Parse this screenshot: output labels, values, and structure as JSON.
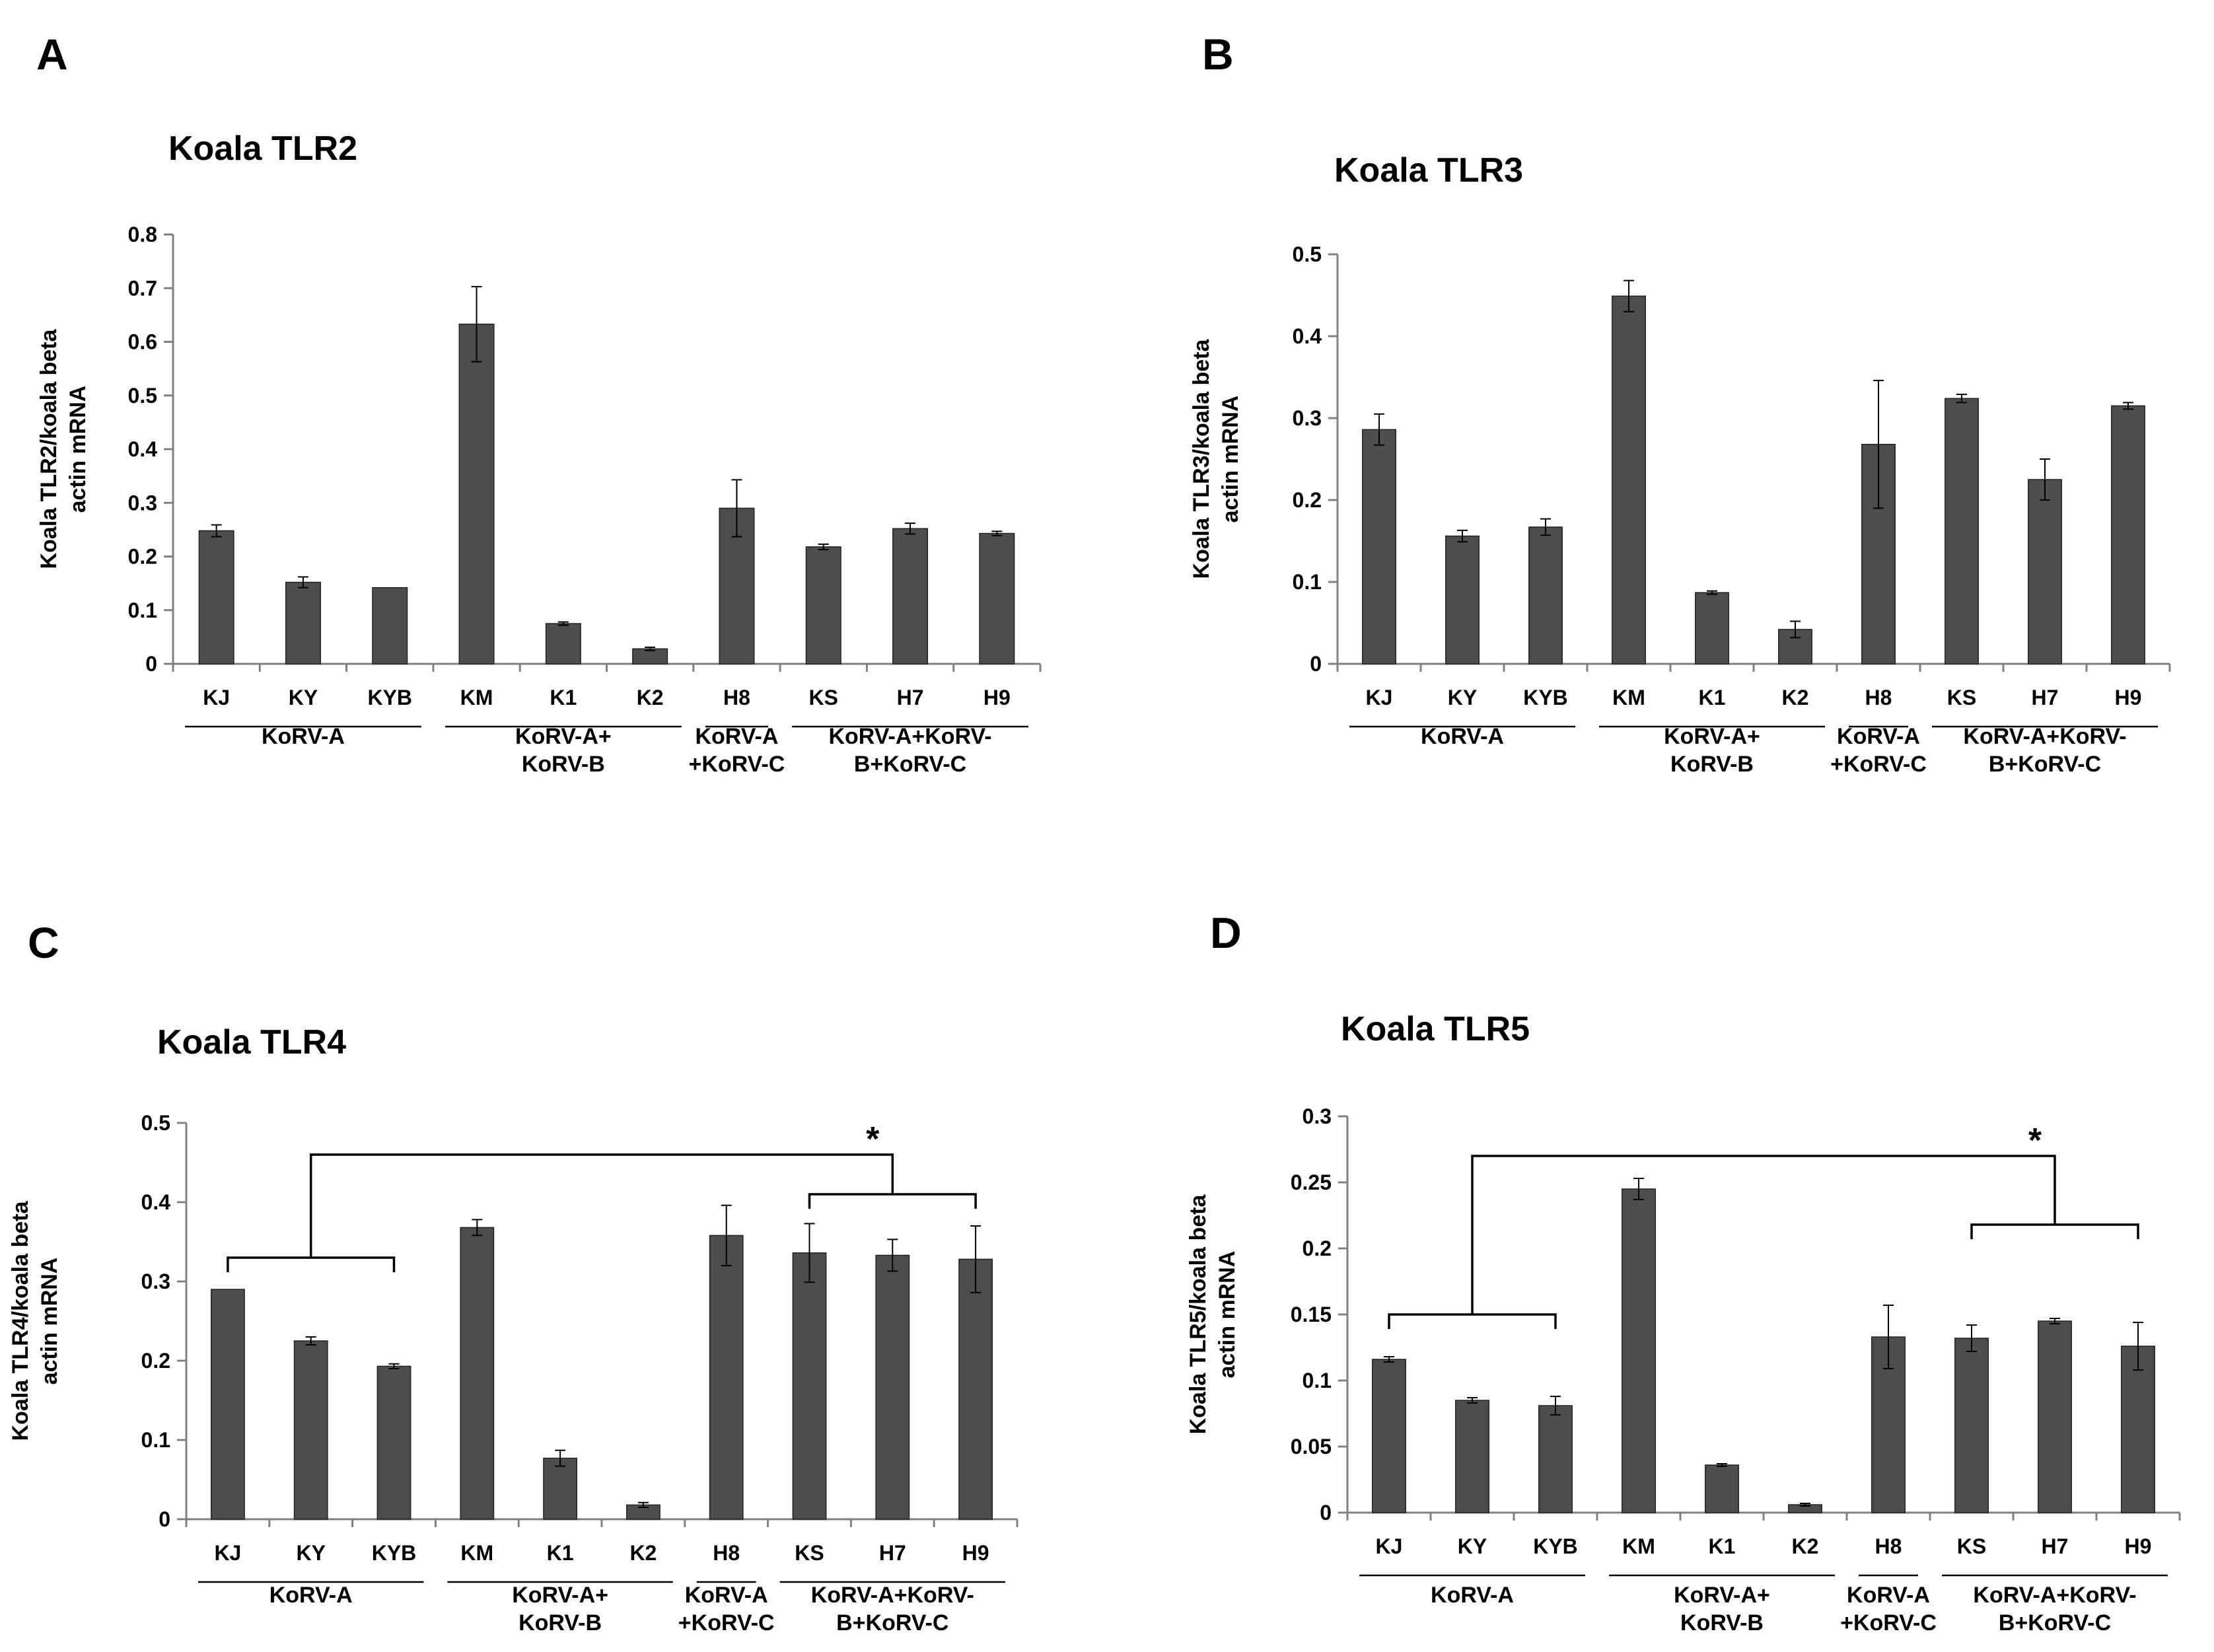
{
  "chart_data": [
    {
      "panel": "A",
      "type": "bar",
      "title": "Koala TLR2",
      "ylabel": [
        "Koala TLR2/koala beta",
        "actin mRNA"
      ],
      "ylim": [
        0,
        0.8
      ],
      "yticks": [
        "0",
        "0.1",
        "0.2",
        "0.3",
        "0.4",
        "0.5",
        "0.6",
        "0.7",
        "0.8"
      ],
      "categories": [
        "KJ",
        "KY",
        "KYB",
        "KM",
        "K1",
        "K2",
        "H8",
        "KS",
        "H7",
        "H9"
      ],
      "values": [
        0.248,
        0.152,
        0.142,
        0.633,
        0.075,
        0.028,
        0.29,
        0.218,
        0.252,
        0.243
      ],
      "errors": [
        0.011,
        0.01,
        0.0,
        0.07,
        0.003,
        0.003,
        0.053,
        0.005,
        0.01,
        0.004
      ],
      "groups": [
        {
          "label": [
            "KoRV-A"
          ],
          "start": 0,
          "end": 2
        },
        {
          "label": [
            "KoRV-A+",
            "KoRV-B"
          ],
          "start": 3,
          "end": 5
        },
        {
          "label": [
            "KoRV-A",
            "+KoRV-C"
          ],
          "start": 6,
          "end": 6
        },
        {
          "label": [
            "KoRV-A+KoRV-",
            "B+KoRV-C"
          ],
          "start": 7,
          "end": 9
        }
      ]
    },
    {
      "panel": "B",
      "type": "bar",
      "title": "Koala TLR3",
      "ylabel": [
        "Koala TLR3/koala beta",
        "actin mRNA"
      ],
      "ylim": [
        0,
        0.5
      ],
      "yticks": [
        "0",
        "0.1",
        "0.2",
        "0.3",
        "0.4",
        "0.5"
      ],
      "categories": [
        "KJ",
        "KY",
        "KYB",
        "KM",
        "K1",
        "K2",
        "H8",
        "KS",
        "H7",
        "H9"
      ],
      "values": [
        0.286,
        0.156,
        0.167,
        0.449,
        0.087,
        0.042,
        0.268,
        0.324,
        0.225,
        0.315
      ],
      "errors": [
        0.019,
        0.007,
        0.01,
        0.019,
        0.002,
        0.01,
        0.078,
        0.005,
        0.025,
        0.004
      ],
      "groups": [
        {
          "label": [
            "KoRV-A"
          ],
          "start": 0,
          "end": 2
        },
        {
          "label": [
            "KoRV-A+",
            "KoRV-B"
          ],
          "start": 3,
          "end": 5
        },
        {
          "label": [
            "KoRV-A",
            "+KoRV-C"
          ],
          "start": 6,
          "end": 6
        },
        {
          "label": [
            "KoRV-A+KoRV-",
            "B+KoRV-C"
          ],
          "start": 7,
          "end": 9
        }
      ]
    },
    {
      "panel": "C",
      "type": "bar",
      "title": "Koala TLR4",
      "ylabel": [
        "Koala TLR4/koala beta",
        "actin mRNA"
      ],
      "ylim": [
        0,
        0.5
      ],
      "yticks": [
        "0",
        "0.1",
        "0.2",
        "0.3",
        "0.4",
        "0.5"
      ],
      "categories": [
        "KJ",
        "KY",
        "KYB",
        "KM",
        "K1",
        "K2",
        "H8",
        "KS",
        "H7",
        "H9"
      ],
      "values": [
        0.29,
        0.225,
        0.193,
        0.368,
        0.077,
        0.018,
        0.358,
        0.336,
        0.333,
        0.328
      ],
      "errors": [
        0.0,
        0.005,
        0.003,
        0.01,
        0.01,
        0.003,
        0.038,
        0.037,
        0.02,
        0.042
      ],
      "groups": [
        {
          "label": [
            "KoRV-A"
          ],
          "start": 0,
          "end": 2
        },
        {
          "label": [
            "KoRV-A+",
            "KoRV-B"
          ],
          "start": 3,
          "end": 5
        },
        {
          "label": [
            "KoRV-A",
            "+KoRV-C"
          ],
          "start": 6,
          "end": 6
        },
        {
          "label": [
            "KoRV-A+KoRV-",
            "B+KoRV-C"
          ],
          "start": 7,
          "end": 9
        }
      ],
      "significance": {
        "label": "*",
        "left": [
          0,
          2
        ],
        "right": [
          7,
          9
        ],
        "left_level": 0.33,
        "right_level": 0.41,
        "top_level": 0.46
      }
    },
    {
      "panel": "D",
      "type": "bar",
      "title": "Koala TLR5",
      "ylabel": [
        "Koala TLR5/koala beta",
        "actin mRNA"
      ],
      "ylim": [
        0,
        0.3
      ],
      "yticks": [
        "0",
        "0.05",
        "0.1",
        "0.15",
        "0.2",
        "0.25",
        "0.3"
      ],
      "categories": [
        "KJ",
        "KY",
        "KYB",
        "KM",
        "K1",
        "K2",
        "H8",
        "KS",
        "H7",
        "H9"
      ],
      "values": [
        0.116,
        0.085,
        0.081,
        0.245,
        0.036,
        0.006,
        0.133,
        0.132,
        0.145,
        0.126
      ],
      "errors": [
        0.002,
        0.002,
        0.007,
        0.008,
        0.001,
        0.001,
        0.024,
        0.01,
        0.002,
        0.018
      ],
      "groups": [
        {
          "label": [
            "KoRV-A"
          ],
          "start": 0,
          "end": 2
        },
        {
          "label": [
            "KoRV-A+",
            "KoRV-B"
          ],
          "start": 3,
          "end": 5
        },
        {
          "label": [
            "KoRV-A",
            "+KoRV-C"
          ],
          "start": 6,
          "end": 6
        },
        {
          "label": [
            "KoRV-A+KoRV-",
            "B+KoRV-C"
          ],
          "start": 7,
          "end": 9
        }
      ],
      "significance": {
        "label": "*",
        "left": [
          0,
          2
        ],
        "right": [
          7,
          9
        ],
        "left_level": 0.15,
        "right_level": 0.218,
        "top_level": 0.27
      }
    }
  ]
}
